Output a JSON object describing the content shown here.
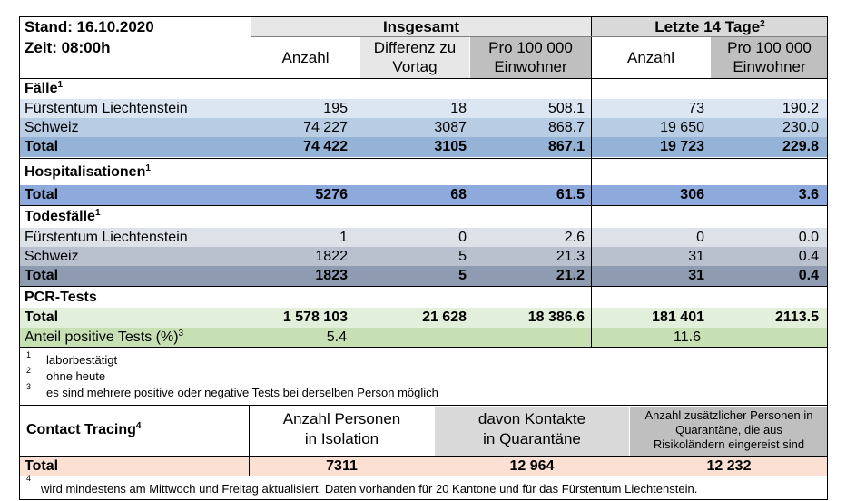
{
  "stand": "Stand: 16.10.2020",
  "zeit": "Zeit: 08:00h",
  "header": {
    "insgesamt": "Insgesamt",
    "letzte14": "Letzte 14 Tage",
    "letzte14_sup": "2",
    "anzahl1": "Anzahl",
    "differenz_line1": "Differenz zu",
    "differenz_line2": "Vortag",
    "pro100k_line1": "Pro 100 000",
    "pro100k_line2": "Einwohner",
    "anzahl2": "Anzahl",
    "pro100k2_line1": "Pro 100 000",
    "pro100k2_line2": "Einwohner"
  },
  "faelle": {
    "title": "Fälle",
    "sup": "1",
    "rows": [
      {
        "label": "Fürstentum Liechtenstein",
        "anzahl": "195",
        "diff": "18",
        "pro": "508.1",
        "anzahl14": "73",
        "pro14": "190.2"
      },
      {
        "label": "Schweiz",
        "anzahl": "74 227",
        "diff": "3087",
        "pro": "868.7",
        "anzahl14": "19 650",
        "pro14": "230.0"
      },
      {
        "label": "Total",
        "anzahl": "74 422",
        "diff": "3105",
        "pro": "867.1",
        "anzahl14": "19 723",
        "pro14": "229.8"
      }
    ]
  },
  "hosp": {
    "title": "Hospitalisationen",
    "sup": "1",
    "total": {
      "label": "Total",
      "anzahl": "5276",
      "diff": "68",
      "pro": "61.5",
      "anzahl14": "306",
      "pro14": "3.6"
    }
  },
  "tod": {
    "title": "Todesfälle",
    "sup": "1",
    "rows": [
      {
        "label": "Fürstentum Liechtenstein",
        "anzahl": "1",
        "diff": "0",
        "pro": "2.6",
        "anzahl14": "0",
        "pro14": "0.0"
      },
      {
        "label": "Schweiz",
        "anzahl": "1822",
        "diff": "5",
        "pro": "21.3",
        "anzahl14": "31",
        "pro14": "0.4"
      },
      {
        "label": "Total",
        "anzahl": "1823",
        "diff": "5",
        "pro": "21.2",
        "anzahl14": "31",
        "pro14": "0.4"
      }
    ]
  },
  "pcr": {
    "title": "PCR-Tests",
    "total": {
      "label": "Total",
      "anzahl": "1 578 103",
      "diff": "21 628",
      "pro": "18 386.6",
      "anzahl14": "181 401",
      "pro14": "2113.5"
    },
    "anteil": {
      "label": "Anteil positive Tests (%)",
      "sup": "3",
      "anzahl": "5.4",
      "anzahl14": "11.6"
    }
  },
  "footnotes": [
    {
      "num": "1",
      "text": "laborbestätigt"
    },
    {
      "num": "2",
      "text": "ohne heute"
    },
    {
      "num": "3",
      "text": "es sind mehrere positive oder negative Tests bei derselben Person möglich"
    }
  ],
  "contact": {
    "title": "Contact Tracing",
    "sup": "4",
    "col1_line1": "Anzahl Personen",
    "col1_line2": "in Isolation",
    "col2_line1": "davon Kontakte",
    "col2_line2": "in Quarantäne",
    "col3_line1": "Anzahl zusätzlicher Personen in",
    "col3_line2": "Quarantäne, die aus",
    "col3_line3": "Risikoländern eingereist sind",
    "total_label": "Total",
    "v1": "7311",
    "v2": "12 964",
    "v3": "12 232"
  },
  "footnote4": {
    "num": "4",
    "text": "wird mindestens am Mittwoch und Freitag aktualisiert, Daten vorhanden für 20 Kantone und für das Fürstentum Liechtenstein."
  },
  "colors": {
    "faelle_fl": "#dce6f2",
    "faelle_ch": "#b8cce4",
    "faelle_total": "#95b3d7",
    "hosp_total": "#8ea9db",
    "tod_fl": "#dde1e8",
    "tod_ch": "#b9c1cf",
    "tod_total": "#8e9bb0",
    "pcr_total": "#e2efda",
    "pcr_anteil": "#c6e0b4",
    "header_light": "#e7e7e7",
    "header_dark": "#bfbfbf",
    "contact_total": "#fbe0d3"
  }
}
